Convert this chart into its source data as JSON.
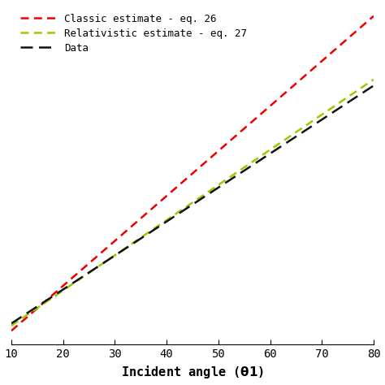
{
  "title": "",
  "xlabel": "Incident angle (θ1)",
  "ylabel": "",
  "x_min": 10,
  "x_max": 80,
  "x_ticks": [
    10,
    20,
    30,
    40,
    50,
    60,
    70,
    80
  ],
  "y_min": 3,
  "y_max": 55,
  "legend": [
    {
      "label": "Classic estimate - eq. 26",
      "color": "#ee0000"
    },
    {
      "label": "Relativistic estimate - eq. 27",
      "color": "#99cc00"
    },
    {
      "label": "Data",
      "color": "#111111"
    }
  ],
  "classic_a": 0.0,
  "classic_b": 0.688,
  "classic_c": -1.8,
  "relativistic_a": 0.0,
  "relativistic_b": 0.538,
  "relativistic_c": 0.5,
  "data_a": 0.0,
  "data_b": 0.52,
  "data_c": 1.0,
  "background_color": "#ffffff"
}
